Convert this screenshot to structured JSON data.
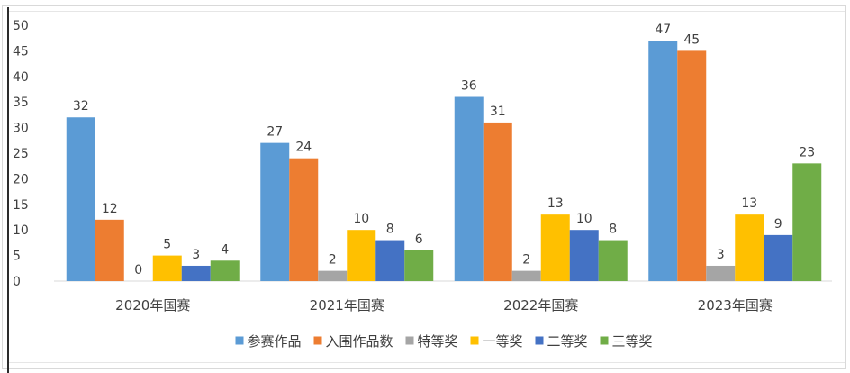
{
  "chart_data": {
    "type": "bar",
    "title": "",
    "xlabel": "",
    "ylabel": "",
    "ylim": [
      0,
      50
    ],
    "yticks": [
      0,
      5,
      10,
      15,
      20,
      25,
      30,
      35,
      40,
      45,
      50
    ],
    "grid": false,
    "legend_position": "bottom",
    "categories": [
      "2020年国赛",
      "2021年国赛",
      "2022年国赛",
      "2023年国赛"
    ],
    "series": [
      {
        "name": "参赛作品",
        "color": "#5B9BD5",
        "values": [
          32,
          27,
          36,
          47
        ]
      },
      {
        "name": "入围作品数",
        "color": "#ED7D31",
        "values": [
          12,
          24,
          31,
          45
        ]
      },
      {
        "name": "特等奖",
        "color": "#A5A5A5",
        "values": [
          0,
          2,
          2,
          3
        ]
      },
      {
        "name": "一等奖",
        "color": "#FFC000",
        "values": [
          5,
          10,
          13,
          13
        ]
      },
      {
        "name": "二等奖",
        "color": "#4472C4",
        "values": [
          3,
          8,
          10,
          9
        ]
      },
      {
        "name": "三等奖",
        "color": "#70AD47",
        "values": [
          4,
          6,
          8,
          23
        ]
      }
    ]
  }
}
